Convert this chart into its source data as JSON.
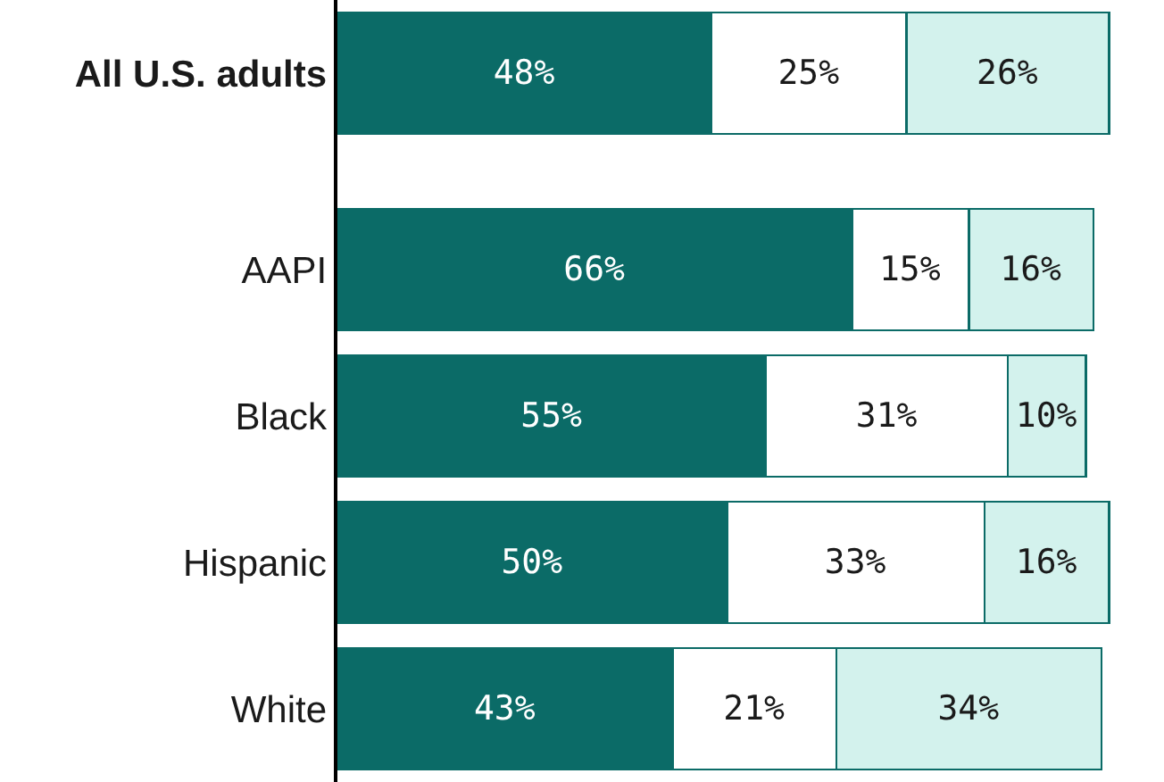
{
  "chart_data": {
    "type": "bar",
    "orientation": "horizontal",
    "stacked": true,
    "categories": [
      "All U.S. adults",
      "AAPI",
      "Black",
      "Hispanic",
      "White"
    ],
    "series": [
      {
        "color": "#0b6b67",
        "values": [
          48,
          66,
          55,
          50,
          43
        ],
        "value_labels": [
          "48%",
          "66%",
          "55%",
          "50%",
          "43%"
        ]
      },
      {
        "color": "#ffffff",
        "values": [
          25,
          15,
          31,
          33,
          21
        ],
        "value_labels": [
          "25%",
          "15%",
          "31%",
          "33%",
          "21%"
        ]
      },
      {
        "color": "#d3f2ed",
        "values": [
          26,
          16,
          10,
          16,
          34
        ],
        "value_labels": [
          "26%",
          "16%",
          "10%",
          "16%",
          "34%"
        ]
      }
    ],
    "tick_labels": "y",
    "legend": false
  }
}
